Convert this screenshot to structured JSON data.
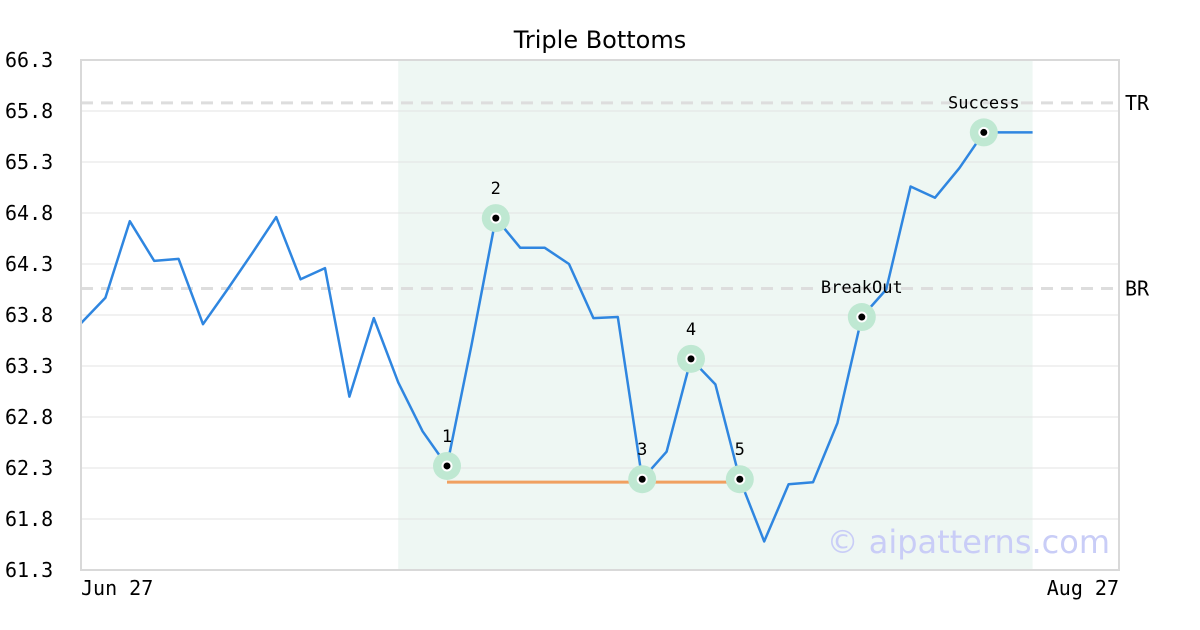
{
  "chart_data": {
    "type": "line",
    "title": "Triple Bottoms",
    "watermark": "© aipatterns.com",
    "ylim": [
      61.3,
      66.3
    ],
    "yticks": [
      "66.3",
      "65.8",
      "65.3",
      "64.8",
      "64.3",
      "63.8",
      "63.3",
      "62.8",
      "62.3",
      "61.8",
      "61.3"
    ],
    "x_start_label": "Jun 27",
    "x_end_label": "Aug 27",
    "n_points": 40,
    "values": [
      63.72,
      63.97,
      64.72,
      64.33,
      64.35,
      63.71,
      64.05,
      64.4,
      64.76,
      64.15,
      64.26,
      63.0,
      63.77,
      63.14,
      62.66,
      62.32,
      63.5,
      64.75,
      64.46,
      64.46,
      64.3,
      63.77,
      63.78,
      62.19,
      62.46,
      63.37,
      63.12,
      62.19,
      61.58,
      62.14,
      62.16,
      62.74,
      63.78,
      64.05,
      65.06,
      64.95,
      65.24,
      65.59,
      65.59,
      65.59
    ],
    "shaded_range": {
      "from_index": 13,
      "to_index": 39,
      "color": "#eef7f3"
    },
    "series_color": "#2f86e0",
    "levels": [
      {
        "label": "TR",
        "value": 65.88
      },
      {
        "label": "BR",
        "value": 64.06
      }
    ],
    "support_line": {
      "from_index": 15,
      "to_index": 27,
      "value": 62.21,
      "color": "#f0a060"
    },
    "pattern_points": [
      {
        "label": "1",
        "index": 15,
        "value": 62.32,
        "label_pos": "above"
      },
      {
        "label": "2",
        "index": 17,
        "value": 64.75,
        "label_pos": "above"
      },
      {
        "label": "3",
        "index": 23,
        "value": 62.19,
        "label_pos": "above"
      },
      {
        "label": "4",
        "index": 25,
        "value": 63.37,
        "label_pos": "above"
      },
      {
        "label": "5",
        "index": 27,
        "value": 62.19,
        "label_pos": "above"
      },
      {
        "label": "BreakOut",
        "index": 32,
        "value": 63.78,
        "label_pos": "above"
      },
      {
        "label": "Success",
        "index": 37,
        "value": 65.59,
        "label_pos": "above"
      }
    ],
    "grid": true,
    "marker_halo_color": "#bfe8d2"
  }
}
